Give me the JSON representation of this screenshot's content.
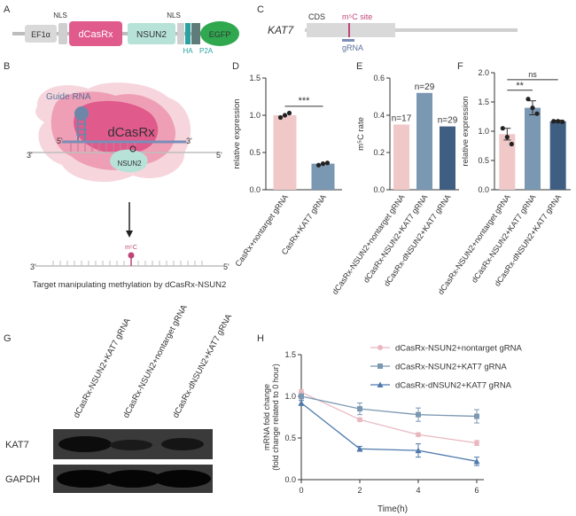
{
  "panels": {
    "A": "A",
    "B": "B",
    "C": "C",
    "D": "D",
    "E": "E",
    "F": "F",
    "G": "G",
    "H": "H"
  },
  "construct": {
    "parts": [
      "EF1α",
      "dCasRx",
      "NSUN2",
      "EGFP"
    ],
    "nls_left": "NLS",
    "nls_right": "NLS",
    "ha": "HA",
    "p2a": "P2A"
  },
  "schematic_c": {
    "gene": "KAT7",
    "cds": "CDS",
    "site": "m⁵C site",
    "grna": "gRNA"
  },
  "schematic_b": {
    "guide": "Guide RNA",
    "dcasrx": "dCasRx",
    "nsun2": "NSUN2",
    "five": "5'",
    "three": "3'",
    "m5c": "m⁵C",
    "caption": "Target manipulating methylation by dCasRx-NSUN2"
  },
  "blot": {
    "lanes": [
      "dCasRx-NSUN2+KAT7 gRNA",
      "dCasRx-NSUN2+nontarget gRNA",
      "dCasRx-dNSUN2+KAT7 gRNA"
    ],
    "rows": [
      "KAT7",
      "GAPDH"
    ]
  },
  "colors": {
    "pink": "#f0c8c8",
    "blue_mid": "#7b98b2",
    "blue_dark": "#3f5f82",
    "dcasrx": "#e05a8c",
    "nsun2": "#b6e2d8",
    "egfp": "#2fa84f"
  },
  "chart_data": [
    {
      "id": "D",
      "type": "bar",
      "ylabel": "relative expression",
      "ylim": [
        0,
        1.5
      ],
      "yticks": [
        0.0,
        0.5,
        1.0,
        1.5
      ],
      "categories": [
        "CasRx+nontarget gRNA",
        "CasRx+KAT7 gRNA"
      ],
      "values": [
        1.0,
        0.35
      ],
      "points": [
        [
          0.97,
          1.0,
          1.03
        ],
        [
          0.33,
          0.35,
          0.36
        ]
      ],
      "significance": "***"
    },
    {
      "id": "E",
      "type": "bar",
      "ylabel": "m⁵C rate",
      "ylim": [
        0,
        0.6
      ],
      "yticks": [
        0.0,
        0.2,
        0.4,
        0.6
      ],
      "categories": [
        "dCasRx-NSUN2+nontarget gRNA",
        "dCasRx-NSUN2+KAT7 gRNA",
        "dCasRx-dNSUN2+KAT7 gRNA"
      ],
      "values": [
        0.35,
        0.52,
        0.34
      ],
      "labels": [
        "n=17",
        "n=29",
        "n=29"
      ]
    },
    {
      "id": "F",
      "type": "bar",
      "ylabel": "relative expression",
      "ylim": [
        0,
        2.0
      ],
      "yticks": [
        0.0,
        0.5,
        1.0,
        1.5,
        2.0
      ],
      "categories": [
        "dCasRx-NSUN2+nontarget gRNA",
        "dCasRx-NSUN2+KAT7 gRNA",
        "dCasRx-dNSUN2+KAT7 gRNA"
      ],
      "values": [
        0.95,
        1.4,
        1.17
      ],
      "errors": [
        0.1,
        0.12,
        0.02
      ],
      "points": [
        [
          1.05,
          0.9,
          0.78
        ],
        [
          1.55,
          1.4,
          1.3
        ],
        [
          1.17,
          1.17,
          1.16
        ]
      ],
      "significance": [
        "**",
        "ns"
      ]
    },
    {
      "id": "H",
      "type": "line",
      "xlabel": "Time(h)",
      "ylabel": "mRNA fold change (fold change related to 0 hour)",
      "ylim": [
        0,
        1.5
      ],
      "yticks": [
        0.0,
        0.5,
        1.0,
        1.5
      ],
      "xlim": [
        0,
        6
      ],
      "x": [
        0,
        2,
        4,
        6
      ],
      "series": [
        {
          "name": "dCasRx-NSUN2+nontarget gRNA",
          "values": [
            1.05,
            0.72,
            0.54,
            0.44
          ],
          "errors": [
            0.03,
            0.02,
            0.02,
            0.03
          ],
          "marker": "circle"
        },
        {
          "name": "dCasRx-NSUN2+KAT7 gRNA",
          "values": [
            1.0,
            0.85,
            0.78,
            0.76
          ],
          "errors": [
            0.03,
            0.07,
            0.08,
            0.08
          ],
          "marker": "square"
        },
        {
          "name": "dCasRx-dNSUN2+KAT7 gRNA",
          "values": [
            0.92,
            0.37,
            0.35,
            0.22
          ],
          "errors": [
            0.03,
            0.03,
            0.08,
            0.05
          ],
          "marker": "triangle"
        }
      ]
    }
  ]
}
